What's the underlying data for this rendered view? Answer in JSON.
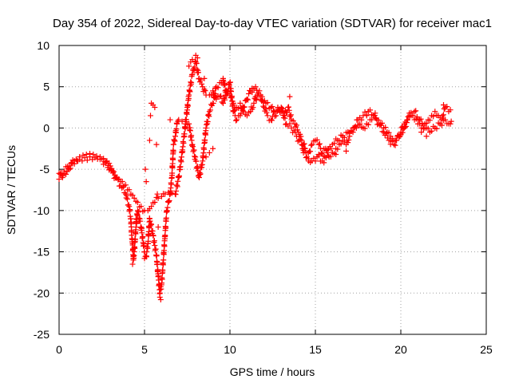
{
  "chart_data": {
    "type": "scatter",
    "title": "Day 354 of 2022, Sidereal Day-to-day VTEC variation (SDTVAR) for receiver mac1",
    "xlabel": "GPS time / hours",
    "ylabel": "SDTVAR / TECUs",
    "xlim": [
      0,
      25
    ],
    "ylim": [
      -25,
      10
    ],
    "x_ticks": [
      0,
      5,
      10,
      15,
      20,
      25
    ],
    "y_ticks": [
      -25,
      -20,
      -15,
      -10,
      -5,
      0,
      5,
      10
    ],
    "x_tick_labels": [
      "0",
      "5",
      "10",
      "15",
      "20",
      "25"
    ],
    "y_tick_labels": [
      "-25",
      "-20",
      "-15",
      "-10",
      "-5",
      "0",
      "5",
      "10"
    ],
    "grid": true,
    "marker": "+",
    "color": "#ff0000",
    "series": [
      {
        "name": "main_track",
        "points": [
          [
            0.0,
            -5.5
          ],
          [
            0.2,
            -6.0
          ],
          [
            0.4,
            -5.6
          ],
          [
            0.6,
            -5.0
          ],
          [
            0.8,
            -4.3
          ],
          [
            1.0,
            -3.8
          ],
          [
            1.2,
            -3.5
          ],
          [
            1.4,
            -3.3
          ],
          [
            1.6,
            -3.2
          ],
          [
            1.8,
            -3.1
          ],
          [
            2.0,
            -3.2
          ],
          [
            2.2,
            -3.4
          ],
          [
            2.4,
            -3.5
          ],
          [
            2.6,
            -3.7
          ],
          [
            2.8,
            -4.0
          ],
          [
            3.0,
            -4.6
          ],
          [
            3.2,
            -5.3
          ],
          [
            3.4,
            -6.0
          ],
          [
            3.6,
            -6.5
          ],
          [
            3.8,
            -7.0
          ],
          [
            4.0,
            -7.5
          ],
          [
            4.2,
            -8.0
          ],
          [
            4.4,
            -8.5
          ],
          [
            4.6,
            -9.0
          ],
          [
            4.8,
            -9.5
          ],
          [
            5.0,
            -10.0
          ],
          [
            5.2,
            -10.0
          ],
          [
            5.4,
            -9.5
          ],
          [
            5.6,
            -9.0
          ],
          [
            5.8,
            -8.5
          ],
          [
            6.0,
            -8.3
          ],
          [
            6.2,
            -8.0
          ],
          [
            6.4,
            -7.8
          ],
          [
            6.6,
            -7.9
          ],
          [
            6.8,
            -8.0
          ],
          [
            7.0,
            -6.0
          ],
          [
            7.2,
            -3.0
          ],
          [
            7.4,
            0.5
          ],
          [
            7.6,
            4.0
          ],
          [
            7.8,
            6.5
          ],
          [
            8.0,
            8.0
          ],
          [
            8.2,
            6.0
          ],
          [
            8.4,
            5.0
          ],
          [
            8.6,
            4.0
          ],
          [
            8.8,
            4.0
          ],
          [
            9.0,
            4.5
          ],
          [
            9.2,
            3.5
          ],
          [
            9.4,
            3.8
          ],
          [
            9.6,
            3.0
          ],
          [
            9.8,
            4.5
          ],
          [
            10.0,
            4.0
          ],
          [
            10.2,
            3.0
          ],
          [
            10.4,
            2.5
          ],
          [
            10.6,
            3.0
          ],
          [
            10.8,
            2.0
          ],
          [
            11.0,
            1.5
          ],
          [
            11.2,
            2.0
          ],
          [
            11.4,
            3.0
          ],
          [
            11.6,
            4.0
          ],
          [
            11.8,
            3.5
          ],
          [
            12.0,
            2.5
          ],
          [
            12.2,
            1.5
          ],
          [
            12.4,
            1.0
          ],
          [
            12.6,
            2.0
          ],
          [
            12.8,
            2.5
          ],
          [
            13.0,
            2.0
          ],
          [
            13.2,
            1.5
          ],
          [
            13.4,
            2.5
          ],
          [
            13.6,
            1.0
          ],
          [
            13.8,
            0.5
          ],
          [
            14.0,
            -0.5
          ],
          [
            14.2,
            -1.5
          ],
          [
            14.4,
            -2.5
          ],
          [
            14.6,
            -3.0
          ],
          [
            14.8,
            -2.0
          ],
          [
            15.0,
            -1.5
          ],
          [
            15.2,
            -2.0
          ],
          [
            15.4,
            -3.0
          ],
          [
            15.6,
            -2.5
          ],
          [
            15.8,
            -3.5
          ],
          [
            16.0,
            -3.0
          ],
          [
            16.2,
            -2.5
          ],
          [
            16.4,
            -2.0
          ],
          [
            16.6,
            -1.5
          ],
          [
            16.8,
            -2.0
          ],
          [
            17.0,
            -1.0
          ],
          [
            17.2,
            -0.5
          ],
          [
            17.4,
            0.0
          ],
          [
            17.6,
            0.5
          ],
          [
            17.8,
            0.0
          ],
          [
            18.0,
            0.5
          ],
          [
            18.2,
            1.0
          ],
          [
            18.4,
            1.5
          ],
          [
            18.6,
            1.0
          ],
          [
            18.8,
            0.5
          ],
          [
            19.0,
            0.0
          ],
          [
            19.2,
            -0.5
          ],
          [
            19.4,
            -1.0
          ],
          [
            19.6,
            -1.5
          ],
          [
            19.8,
            -1.0
          ],
          [
            20.0,
            -0.5
          ],
          [
            20.2,
            0.0
          ],
          [
            20.4,
            1.0
          ],
          [
            20.6,
            1.5
          ],
          [
            20.8,
            1.0
          ],
          [
            21.0,
            0.5
          ],
          [
            21.2,
            0.0
          ],
          [
            21.4,
            0.5
          ],
          [
            21.6,
            1.0
          ],
          [
            21.8,
            1.5
          ],
          [
            22.0,
            2.0
          ],
          [
            22.2,
            1.5
          ],
          [
            22.4,
            1.0
          ],
          [
            22.6,
            2.5
          ],
          [
            22.8,
            2.0
          ]
        ]
      },
      {
        "name": "secondary_track",
        "points": [
          [
            0.0,
            -6.2
          ],
          [
            0.3,
            -5.2
          ],
          [
            0.6,
            -4.6
          ],
          [
            0.9,
            -4.0
          ],
          [
            1.2,
            -3.8
          ],
          [
            1.5,
            -3.6
          ],
          [
            1.8,
            -3.5
          ],
          [
            2.1,
            -3.6
          ],
          [
            2.4,
            -3.8
          ],
          [
            2.7,
            -4.2
          ],
          [
            3.0,
            -5.0
          ],
          [
            3.3,
            -6.0
          ],
          [
            3.6,
            -7.0
          ],
          [
            3.9,
            -8.0
          ],
          [
            4.1,
            -9.5
          ],
          [
            4.2,
            -11.0
          ],
          [
            4.25,
            -13.0
          ],
          [
            4.3,
            -14.0
          ],
          [
            4.35,
            -16.0
          ],
          [
            4.4,
            -15.0
          ],
          [
            4.5,
            -12.0
          ],
          [
            4.6,
            -10.0
          ],
          [
            4.8,
            -12.0
          ],
          [
            5.0,
            -15.0
          ],
          [
            5.1,
            -15.5
          ],
          [
            5.2,
            -14.0
          ],
          [
            5.3,
            -11.0
          ],
          [
            5.5,
            -13.0
          ],
          [
            5.7,
            -15.5
          ],
          [
            5.8,
            -18.0
          ],
          [
            5.9,
            -20.0
          ],
          [
            6.0,
            -19.0
          ],
          [
            6.1,
            -16.0
          ],
          [
            6.2,
            -13.0
          ],
          [
            6.3,
            -10.0
          ],
          [
            6.4,
            -9.0
          ],
          [
            6.5,
            -8.0
          ],
          [
            6.6,
            -6.0
          ],
          [
            6.7,
            -2.0
          ],
          [
            6.8,
            -1.0
          ],
          [
            6.9,
            0.5
          ],
          [
            7.0,
            1.0
          ],
          [
            7.2,
            0.8
          ],
          [
            7.4,
            1.0
          ],
          [
            7.6,
            0.5
          ],
          [
            7.8,
            -2.0
          ],
          [
            8.0,
            -4.0
          ],
          [
            8.2,
            -6.0
          ],
          [
            8.4,
            -4.0
          ],
          [
            8.6,
            0.0
          ],
          [
            8.8,
            2.0
          ],
          [
            9.0,
            3.0
          ],
          [
            9.2,
            5.0
          ],
          [
            9.4,
            5.5
          ],
          [
            9.6,
            6.0
          ],
          [
            9.8,
            4.0
          ],
          [
            10.0,
            5.5
          ],
          [
            10.2,
            2.0
          ],
          [
            10.4,
            1.0
          ],
          [
            10.6,
            1.5
          ],
          [
            10.8,
            2.5
          ],
          [
            11.0,
            3.5
          ],
          [
            11.2,
            4.5
          ],
          [
            11.5,
            5.0
          ],
          [
            11.8,
            4.0
          ],
          [
            12.1,
            3.0
          ],
          [
            12.4,
            2.5
          ],
          [
            12.7,
            1.5
          ],
          [
            13.0,
            2.5
          ],
          [
            13.3,
            0.5
          ],
          [
            13.6,
            0.0
          ],
          [
            13.9,
            -1.0
          ],
          [
            14.2,
            -2.0
          ],
          [
            14.5,
            -3.5
          ],
          [
            14.8,
            -4.0
          ],
          [
            15.1,
            -3.5
          ],
          [
            15.4,
            -4.0
          ],
          [
            15.7,
            -3.0
          ],
          [
            16.0,
            -2.0
          ],
          [
            16.3,
            -1.5
          ],
          [
            16.6,
            -1.0
          ],
          [
            16.9,
            -0.5
          ],
          [
            17.2,
            0.0
          ],
          [
            17.5,
            1.0
          ],
          [
            17.8,
            1.5
          ],
          [
            18.1,
            2.0
          ],
          [
            18.4,
            1.5
          ],
          [
            18.7,
            0.5
          ],
          [
            19.0,
            -0.5
          ],
          [
            19.3,
            -1.5
          ],
          [
            19.6,
            -2.0
          ],
          [
            19.9,
            -1.0
          ],
          [
            20.2,
            0.5
          ],
          [
            20.5,
            1.5
          ],
          [
            20.8,
            2.0
          ],
          [
            21.1,
            1.0
          ],
          [
            21.4,
            0.0
          ],
          [
            21.7,
            -0.5
          ],
          [
            22.0,
            0.0
          ],
          [
            22.3,
            0.5
          ],
          [
            22.6,
            1.0
          ],
          [
            22.9,
            0.5
          ]
        ]
      },
      {
        "name": "spikes",
        "points": [
          [
            4.3,
            -16.5
          ],
          [
            4.35,
            -15.8
          ],
          [
            4.4,
            -14.5
          ],
          [
            4.5,
            -11.0
          ],
          [
            5.0,
            -15.8
          ],
          [
            5.05,
            -5.0
          ],
          [
            5.1,
            -6.5
          ],
          [
            5.3,
            -1.5
          ],
          [
            5.35,
            1.5
          ],
          [
            5.4,
            3.0
          ],
          [
            5.5,
            2.8
          ],
          [
            5.6,
            2.5
          ],
          [
            5.7,
            -2.0
          ],
          [
            5.75,
            -8.0
          ],
          [
            5.8,
            -12.0
          ],
          [
            5.9,
            -20.5
          ],
          [
            5.95,
            -20.8
          ],
          [
            6.5,
            1.0
          ],
          [
            7.5,
            2.5
          ],
          [
            7.6,
            7.5
          ],
          [
            7.7,
            8.0
          ],
          [
            7.8,
            8.3
          ],
          [
            8.0,
            8.8
          ],
          [
            8.1,
            8.5
          ],
          [
            8.5,
            6.0
          ],
          [
            8.6,
            -3.5
          ],
          [
            8.8,
            -3.0
          ],
          [
            9.0,
            -2.5
          ],
          [
            9.6,
            5.8
          ],
          [
            10.3,
            2.2
          ],
          [
            11.3,
            4.8
          ],
          [
            11.5,
            3.8
          ],
          [
            13.2,
            1.8
          ],
          [
            13.5,
            3.8
          ],
          [
            14.3,
            -3.0
          ],
          [
            14.6,
            -4.0
          ],
          [
            15.2,
            -3.2
          ],
          [
            15.5,
            -4.2
          ],
          [
            16.2,
            -3.2
          ],
          [
            16.8,
            -2.8
          ],
          [
            18.0,
            1.5
          ],
          [
            18.5,
            1.8
          ],
          [
            19.4,
            -1.5
          ],
          [
            20.0,
            -0.8
          ],
          [
            20.5,
            1.8
          ],
          [
            21.2,
            -0.5
          ],
          [
            21.5,
            -1.0
          ],
          [
            22.5,
            2.8
          ],
          [
            22.9,
            2.2
          ],
          [
            22.95,
            0.8
          ]
        ]
      }
    ]
  }
}
